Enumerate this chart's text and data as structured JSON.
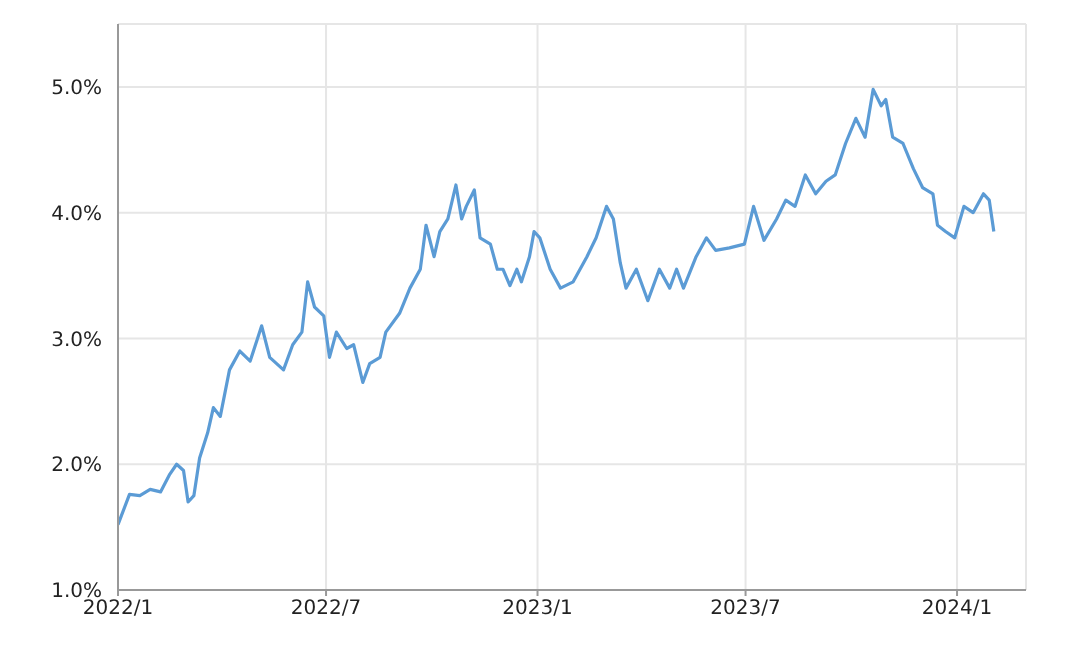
{
  "chart_data": {
    "type": "line",
    "xlim": [
      "2022-01-01",
      "2024-03-01"
    ],
    "xticks": [
      {
        "value": "2022-01-01",
        "label": "2022/1"
      },
      {
        "value": "2022-07-01",
        "label": "2022/7"
      },
      {
        "value": "2023-01-01",
        "label": "2023/1"
      },
      {
        "value": "2023-07-01",
        "label": "2023/7"
      },
      {
        "value": "2024-01-01",
        "label": "2024/1"
      }
    ],
    "ylim": [
      1,
      5.5
    ],
    "yticks": [
      {
        "value": 1,
        "label": "1.0%"
      },
      {
        "value": 2,
        "label": "2.0%"
      },
      {
        "value": 3,
        "label": "3.0%"
      },
      {
        "value": 4,
        "label": "4.0%"
      },
      {
        "value": 5,
        "label": "5.0%"
      }
    ],
    "grid": true,
    "marker": "none",
    "line_style": "solid",
    "x": [
      "2022-01-01",
      "2022-01-11",
      "2022-01-20",
      "2022-01-29",
      "2022-02-07",
      "2022-02-15",
      "2022-02-21",
      "2022-02-27",
      "2022-03-03",
      "2022-03-08",
      "2022-03-13",
      "2022-03-20",
      "2022-03-25",
      "2022-03-31",
      "2022-04-08",
      "2022-04-17",
      "2022-04-26",
      "2022-05-06",
      "2022-05-13",
      "2022-05-25",
      "2022-06-02",
      "2022-06-10",
      "2022-06-15",
      "2022-06-21",
      "2022-06-29",
      "2022-07-04",
      "2022-07-10",
      "2022-07-19",
      "2022-07-25",
      "2022-08-02",
      "2022-08-08",
      "2022-08-17",
      "2022-08-22",
      "2022-09-03",
      "2022-09-12",
      "2022-09-21",
      "2022-09-26",
      "2022-10-03",
      "2022-10-08",
      "2022-10-15",
      "2022-10-22",
      "2022-10-27",
      "2022-10-31",
      "2022-11-07",
      "2022-11-12",
      "2022-11-21",
      "2022-11-27",
      "2022-12-02",
      "2022-12-08",
      "2022-12-14",
      "2022-12-18",
      "2022-12-25",
      "2022-12-29",
      "2023-01-03",
      "2023-01-12",
      "2023-01-21",
      "2023-02-01",
      "2023-02-13",
      "2023-02-21",
      "2023-03-02",
      "2023-03-08",
      "2023-03-14",
      "2023-03-19",
      "2023-03-28",
      "2023-04-07",
      "2023-04-17",
      "2023-04-26",
      "2023-05-02",
      "2023-05-08",
      "2023-05-19",
      "2023-05-28",
      "2023-06-05",
      "2023-06-17",
      "2023-06-30",
      "2023-07-08",
      "2023-07-17",
      "2023-07-28",
      "2023-08-05",
      "2023-08-13",
      "2023-08-22",
      "2023-08-31",
      "2023-09-09",
      "2023-09-17",
      "2023-09-26",
      "2023-10-05",
      "2023-10-13",
      "2023-10-20",
      "2023-10-27",
      "2023-10-31",
      "2023-11-06",
      "2023-11-15",
      "2023-11-24",
      "2023-12-02",
      "2023-12-11",
      "2023-12-15",
      "2023-12-22",
      "2023-12-30",
      "2024-01-07",
      "2024-01-15",
      "2024-01-24",
      "2024-01-29",
      "2024-02-02"
    ],
    "series": [
      {
        "color": "#5b9bd5",
        "values": [
          1.52,
          1.76,
          1.75,
          1.8,
          1.78,
          1.92,
          2.0,
          1.95,
          1.7,
          1.75,
          2.05,
          2.25,
          2.45,
          2.38,
          2.75,
          2.9,
          2.82,
          3.1,
          2.85,
          2.75,
          2.95,
          3.05,
          3.45,
          3.25,
          3.18,
          2.85,
          3.05,
          2.92,
          2.95,
          2.65,
          2.8,
          2.85,
          3.05,
          3.2,
          3.4,
          3.55,
          3.9,
          3.65,
          3.85,
          3.95,
          4.22,
          3.95,
          4.05,
          4.18,
          3.8,
          3.75,
          3.55,
          3.55,
          3.42,
          3.55,
          3.45,
          3.65,
          3.85,
          3.8,
          3.55,
          3.4,
          3.45,
          3.65,
          3.8,
          4.05,
          3.95,
          3.6,
          3.4,
          3.55,
          3.3,
          3.55,
          3.4,
          3.55,
          3.4,
          3.65,
          3.8,
          3.7,
          3.72,
          3.75,
          4.05,
          3.78,
          3.95,
          4.1,
          4.05,
          4.3,
          4.15,
          4.25,
          4.3,
          4.55,
          4.75,
          4.6,
          4.98,
          4.85,
          4.9,
          4.6,
          4.55,
          4.35,
          4.2,
          4.15,
          3.9,
          3.85,
          3.8,
          4.05,
          4.0,
          4.15,
          4.1,
          3.85
        ]
      }
    ]
  }
}
